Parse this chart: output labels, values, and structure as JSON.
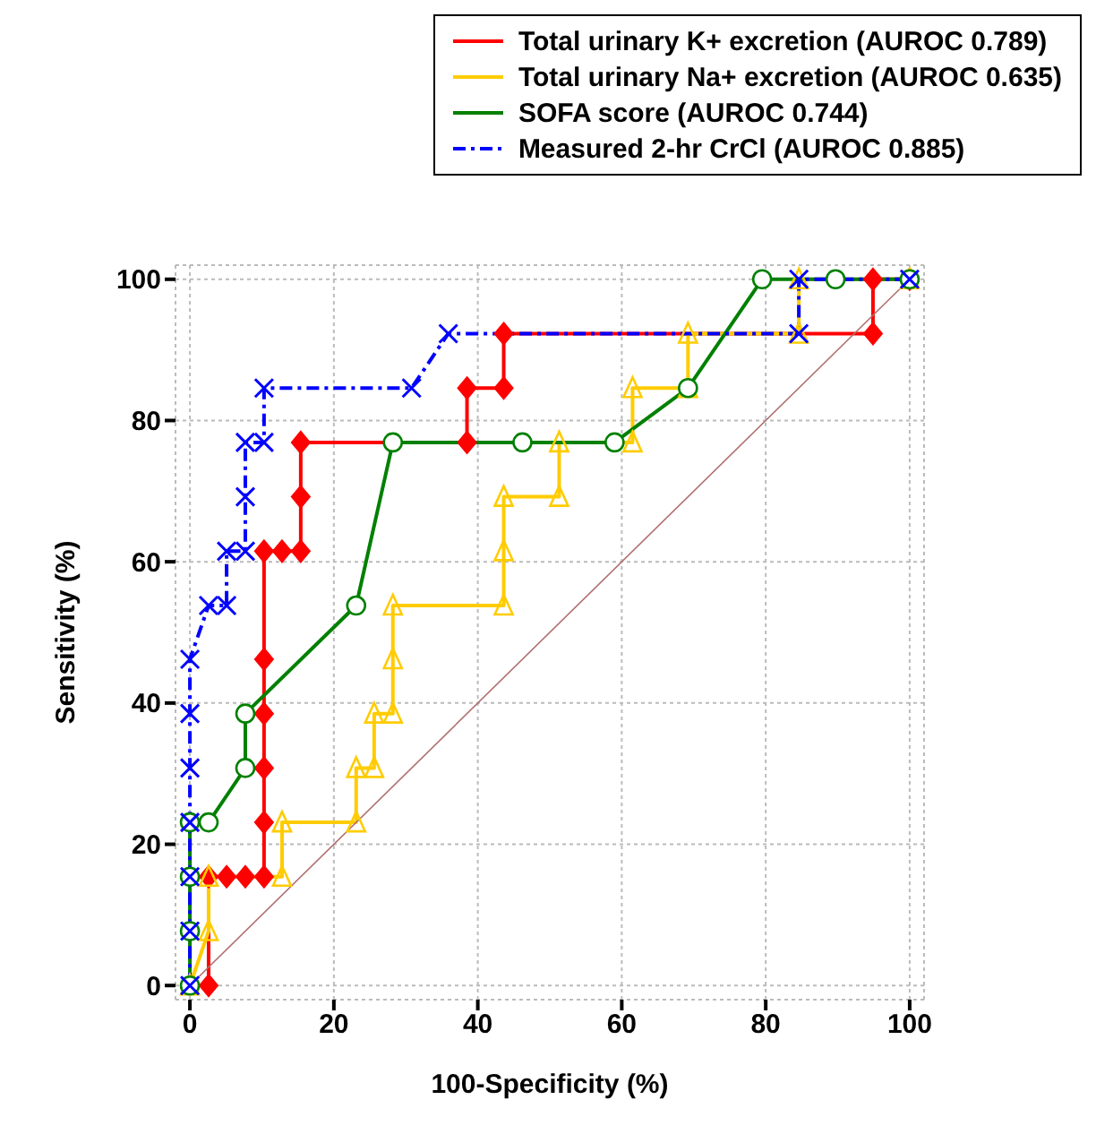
{
  "chart_data": {
    "type": "line",
    "xlabel": "100-Specificity (%)",
    "ylabel": "Sensitivity (%)",
    "xlim": [
      -2,
      102
    ],
    "ylim": [
      -2,
      102
    ],
    "xticks": [
      0,
      20,
      40,
      60,
      80,
      100
    ],
    "yticks": [
      0,
      20,
      40,
      60,
      80,
      100
    ],
    "grid": true,
    "legend": "top right",
    "series": [
      {
        "name": "Total urinary K+ excretion (AUROC 0.789)",
        "color": "#ff0000",
        "marker": "diamond",
        "line_style": "solid",
        "x": [
          2.6,
          2.6,
          5.1,
          7.7,
          10.3,
          10.3,
          10.3,
          10.3,
          10.3,
          10.3,
          12.8,
          15.4,
          15.4,
          15.4,
          38.5,
          38.5,
          43.6,
          43.6,
          94.9,
          94.9,
          100
        ],
        "values": [
          0,
          15.4,
          15.4,
          15.4,
          15.4,
          23.1,
          30.8,
          38.5,
          46.2,
          61.5,
          61.5,
          61.5,
          69.2,
          76.9,
          76.9,
          84.6,
          84.6,
          92.3,
          92.3,
          100,
          100
        ]
      },
      {
        "name": "Total urinary Na+ excretion (AUROC 0.635)",
        "color": "#ffcc00",
        "marker": "triangle",
        "line_style": "solid",
        "x": [
          0,
          2.6,
          2.6,
          12.8,
          12.8,
          23.1,
          23.1,
          25.6,
          25.6,
          28.2,
          28.2,
          28.2,
          43.6,
          43.6,
          43.6,
          51.3,
          51.3,
          61.5,
          61.5,
          69.2,
          69.2,
          84.6,
          84.6,
          100
        ],
        "values": [
          0,
          7.7,
          15.4,
          15.4,
          23.1,
          23.1,
          30.8,
          30.8,
          38.5,
          38.5,
          46.2,
          53.8,
          53.8,
          61.5,
          69.2,
          69.2,
          76.9,
          76.9,
          84.6,
          84.6,
          92.3,
          92.3,
          100,
          100
        ]
      },
      {
        "name": "SOFA score (AUROC 0.744)",
        "color": "#008000",
        "marker": "circle",
        "line_style": "solid",
        "x": [
          0,
          0,
          0,
          0,
          2.6,
          7.7,
          7.7,
          23.1,
          28.2,
          46.2,
          59,
          69.2,
          79.5,
          89.7,
          100
        ],
        "values": [
          0,
          7.7,
          15.4,
          23.1,
          23.1,
          30.8,
          38.5,
          53.8,
          76.9,
          76.9,
          76.9,
          84.6,
          100,
          100,
          100
        ]
      },
      {
        "name": "Measured 2-hr CrCl (AUROC 0.885)",
        "color": "#0000ff",
        "marker": "cross",
        "line_style": "dashed",
        "x": [
          0,
          0,
          0,
          0,
          0,
          0,
          0,
          2.6,
          5.1,
          5.1,
          7.7,
          7.7,
          7.7,
          10.3,
          10.3,
          30.8,
          35.9,
          84.6,
          84.6,
          100
        ],
        "values": [
          0,
          7.7,
          15.4,
          23.1,
          30.8,
          38.5,
          46.2,
          53.8,
          53.8,
          61.5,
          61.5,
          69.2,
          76.9,
          76.9,
          84.6,
          84.6,
          92.3,
          92.3,
          100,
          100
        ]
      },
      {
        "color": "#b07070",
        "marker": "none",
        "line_style": "solid",
        "x": [
          0,
          100
        ],
        "values": [
          0,
          100
        ]
      }
    ]
  }
}
